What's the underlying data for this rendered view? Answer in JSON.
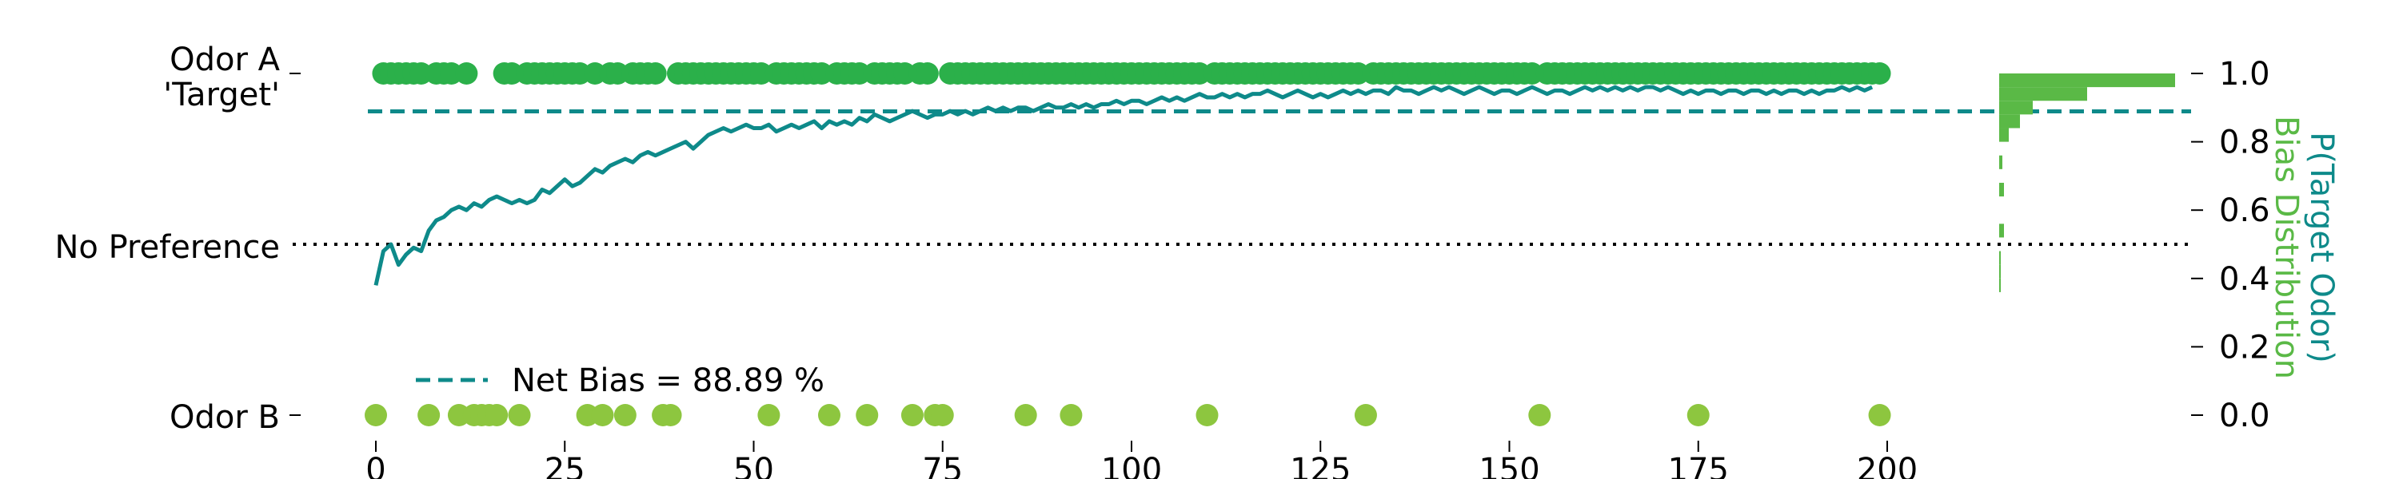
{
  "colors": {
    "odor_a": "#2bb04a",
    "odor_b": "#8dc63f",
    "curve": "#0e8a8a",
    "histogram": "#5ab946",
    "target_label": "#0f9e55",
    "no_pref_line": "#000000"
  },
  "chart_data": [
    {
      "type": "scatter",
      "title": "",
      "y_categories": [
        "Odor A\n'Target'",
        "No Preference",
        "Odor B"
      ],
      "y_category_labels": {
        "odor_a_line1": "Odor A",
        "odor_a_line2": "'Target'",
        "no_preference": "No Preference",
        "odor_b": "Odor B"
      },
      "xlim": [
        0,
        200
      ],
      "ylim": [
        0,
        1
      ],
      "x_ticks": [
        0,
        25,
        50,
        75,
        100,
        125,
        150,
        175,
        200
      ],
      "y_ticks": [
        0.0,
        0.2,
        0.4,
        0.6,
        0.8,
        1.0
      ],
      "y_tick_labels": [
        "0.0",
        "0.2",
        "0.4",
        "0.6",
        "0.8",
        "1.0"
      ],
      "ylabel": "P(Target Odor)",
      "net_bias": 0.8889,
      "no_preference_level": 0.5,
      "legend": {
        "label": "Net Bias = 88.89 %",
        "position": "lower-left"
      },
      "trials": {
        "odor_a": [
          1,
          2,
          3,
          4,
          5,
          6,
          8,
          9,
          10,
          12,
          17,
          18,
          20,
          21,
          22,
          23,
          24,
          25,
          26,
          27,
          29,
          31,
          32,
          34,
          35,
          36,
          37,
          40,
          41,
          42,
          43,
          44,
          45,
          46,
          47,
          48,
          49,
          50,
          51,
          53,
          54,
          55,
          56,
          57,
          58,
          59,
          61,
          62,
          63,
          64,
          66,
          67,
          68,
          69,
          70,
          72,
          73,
          76,
          77,
          78,
          79,
          80,
          81,
          82,
          83,
          84,
          85,
          86,
          87,
          88,
          89,
          90,
          91,
          92,
          93,
          94,
          95,
          96,
          97,
          98,
          99,
          100,
          101,
          102,
          103,
          104,
          105,
          106,
          107,
          108,
          109,
          111,
          112,
          113,
          114,
          115,
          116,
          117,
          118,
          119,
          120,
          121,
          122,
          123,
          124,
          125,
          126,
          127,
          128,
          129,
          130,
          132,
          133,
          134,
          135,
          136,
          137,
          138,
          139,
          140,
          141,
          142,
          143,
          144,
          145,
          146,
          147,
          148,
          149,
          150,
          151,
          152,
          153,
          155,
          156,
          157,
          158,
          159,
          160,
          161,
          162,
          163,
          164,
          165,
          166,
          167,
          168,
          169,
          170,
          171,
          172,
          173,
          174,
          175,
          176,
          177,
          178,
          179,
          180,
          181,
          182,
          183,
          184,
          185,
          186,
          187,
          188,
          189,
          190,
          191,
          192,
          193,
          194,
          195,
          196,
          197,
          198,
          199
        ],
        "odor_b": [
          0,
          7,
          11,
          13,
          14,
          15,
          16,
          19,
          28,
          30,
          33,
          38,
          39,
          52,
          60,
          65,
          71,
          74,
          75,
          86,
          92,
          110,
          131,
          154,
          175,
          199
        ]
      },
      "p_target_curve": [
        0.38,
        0.48,
        0.5,
        0.44,
        0.47,
        0.49,
        0.48,
        0.54,
        0.57,
        0.58,
        0.6,
        0.61,
        0.6,
        0.62,
        0.61,
        0.63,
        0.64,
        0.63,
        0.62,
        0.63,
        0.62,
        0.63,
        0.66,
        0.65,
        0.67,
        0.69,
        0.67,
        0.68,
        0.7,
        0.72,
        0.71,
        0.73,
        0.74,
        0.75,
        0.74,
        0.76,
        0.77,
        0.76,
        0.77,
        0.78,
        0.79,
        0.8,
        0.78,
        0.8,
        0.82,
        0.83,
        0.84,
        0.83,
        0.84,
        0.85,
        0.84,
        0.84,
        0.85,
        0.83,
        0.84,
        0.85,
        0.84,
        0.85,
        0.86,
        0.84,
        0.86,
        0.85,
        0.86,
        0.85,
        0.87,
        0.86,
        0.88,
        0.87,
        0.86,
        0.87,
        0.88,
        0.89,
        0.88,
        0.87,
        0.88,
        0.88,
        0.89,
        0.88,
        0.89,
        0.88,
        0.89,
        0.9,
        0.89,
        0.9,
        0.89,
        0.9,
        0.9,
        0.89,
        0.9,
        0.91,
        0.9,
        0.9,
        0.91,
        0.9,
        0.91,
        0.9,
        0.91,
        0.91,
        0.92,
        0.91,
        0.92,
        0.92,
        0.91,
        0.92,
        0.93,
        0.92,
        0.93,
        0.92,
        0.93,
        0.94,
        0.93,
        0.93,
        0.94,
        0.93,
        0.94,
        0.93,
        0.94,
        0.94,
        0.95,
        0.94,
        0.93,
        0.94,
        0.95,
        0.94,
        0.93,
        0.94,
        0.93,
        0.94,
        0.95,
        0.94,
        0.95,
        0.94,
        0.95,
        0.95,
        0.94,
        0.96,
        0.95,
        0.95,
        0.94,
        0.95,
        0.96,
        0.95,
        0.96,
        0.95,
        0.94,
        0.95,
        0.96,
        0.95,
        0.94,
        0.95,
        0.95,
        0.94,
        0.95,
        0.96,
        0.95,
        0.94,
        0.95,
        0.95,
        0.94,
        0.95,
        0.96,
        0.95,
        0.96,
        0.95,
        0.96,
        0.95,
        0.96,
        0.95,
        0.96,
        0.96,
        0.95,
        0.96,
        0.95,
        0.94,
        0.95,
        0.94,
        0.95,
        0.95,
        0.94,
        0.95,
        0.95,
        0.94,
        0.95,
        0.95,
        0.94,
        0.95,
        0.94,
        0.95,
        0.95,
        0.94,
        0.95,
        0.94,
        0.95,
        0.95,
        0.96,
        0.95,
        0.96,
        0.95,
        0.96
      ]
    },
    {
      "type": "bar",
      "orientation": "horizontal",
      "xlabel": "Bias Distribution",
      "bins": [
        {
          "y": 0.36,
          "count": 1
        },
        {
          "y": 0.4,
          "count": 1
        },
        {
          "y": 0.44,
          "count": 1
        },
        {
          "y": 0.52,
          "count": 3
        },
        {
          "y": 0.64,
          "count": 3
        },
        {
          "y": 0.72,
          "count": 2
        },
        {
          "y": 0.8,
          "count": 6
        },
        {
          "y": 0.84,
          "count": 13
        },
        {
          "y": 0.88,
          "count": 21
        },
        {
          "y": 0.92,
          "count": 55
        },
        {
          "y": 0.96,
          "count": 110
        }
      ]
    }
  ]
}
